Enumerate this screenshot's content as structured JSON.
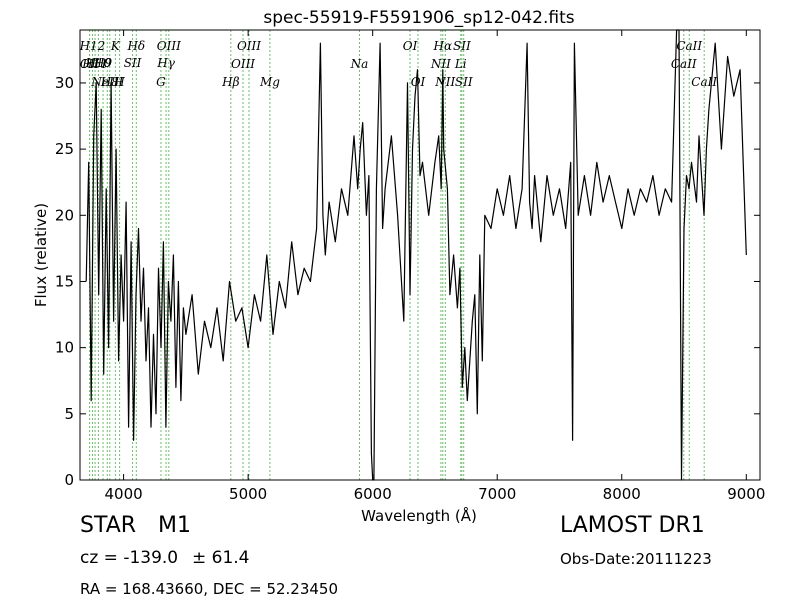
{
  "chart_data": {
    "type": "line",
    "title": "spec-55919-F5591906_sp12-042.fits",
    "xlabel": "Wavelength (Å)",
    "ylabel": "Flux (relative)",
    "xlim": [
      3650,
      9110
    ],
    "ylim": [
      0,
      34
    ],
    "x_ticks": [
      4000,
      5000,
      6000,
      7000,
      8000,
      9000
    ],
    "y_ticks": [
      0,
      5,
      10,
      15,
      20,
      25,
      30
    ],
    "grid": false,
    "line_color": "#000000",
    "marker_color": "#6abf6a",
    "series": [
      {
        "x": [
          3700,
          3720,
          3740,
          3760,
          3780,
          3800,
          3820,
          3840,
          3860,
          3880,
          3900,
          3920,
          3940,
          3960,
          3980,
          4000,
          4020,
          4040,
          4060,
          4080,
          4100,
          4120,
          4140,
          4160,
          4180,
          4200,
          4220,
          4240,
          4260,
          4280,
          4300,
          4320,
          4340,
          4360,
          4380,
          4400,
          4420,
          4440,
          4460,
          4480,
          4500,
          4550,
          4600,
          4650,
          4700,
          4750,
          4800,
          4850,
          4900,
          4950,
          5000,
          5050,
          5100,
          5150,
          5200,
          5250,
          5300,
          5350,
          5400,
          5450,
          5500,
          5550,
          5580,
          5600,
          5620,
          5650,
          5700,
          5750,
          5800,
          5850,
          5880,
          5900,
          5920,
          5950,
          5970,
          5990,
          6000,
          6010,
          6030,
          6060,
          6080,
          6100,
          6150,
          6200,
          6250,
          6280,
          6300,
          6320,
          6340,
          6360,
          6380,
          6400,
          6450,
          6500,
          6530,
          6550,
          6563,
          6570,
          6600,
          6620,
          6650,
          6680,
          6700,
          6720,
          6740,
          6760,
          6780,
          6800,
          6820,
          6840,
          6860,
          6880,
          6900,
          6950,
          7000,
          7050,
          7100,
          7150,
          7200,
          7240,
          7260,
          7280,
          7300,
          7350,
          7400,
          7450,
          7500,
          7550,
          7590,
          7605,
          7620,
          7650,
          7700,
          7750,
          7800,
          7850,
          7900,
          7950,
          8000,
          8050,
          8100,
          8150,
          8200,
          8250,
          8300,
          8350,
          8400,
          8440,
          8460,
          8480,
          8500,
          8520,
          8540,
          8560,
          8600,
          8620,
          8660,
          8680,
          8700,
          8750,
          8800,
          8850,
          8900,
          8950,
          9000
        ],
        "y": [
          15,
          24,
          6,
          26,
          30,
          14,
          28,
          8,
          22,
          10,
          30,
          12,
          25,
          9,
          17,
          12,
          21,
          4,
          18,
          3,
          14,
          19,
          12,
          16,
          9,
          13,
          4,
          11,
          5,
          16,
          10,
          18,
          4,
          15,
          12,
          17,
          7,
          15,
          6,
          13,
          11,
          14,
          8,
          12,
          10,
          13,
          9,
          15,
          12,
          13,
          10,
          14,
          12,
          17,
          11,
          15,
          13,
          18,
          14,
          16,
          15,
          19,
          33,
          20,
          17,
          21,
          18,
          22,
          20,
          26,
          22,
          25,
          27,
          20,
          23,
          2,
          0,
          0,
          22,
          33,
          19,
          22,
          26,
          20,
          12,
          30,
          14,
          25,
          29,
          31,
          23,
          24,
          20,
          24,
          26,
          22,
          31,
          25,
          22,
          14,
          17,
          13,
          16,
          7,
          10,
          6,
          9,
          12,
          14,
          5,
          17,
          9,
          20,
          19,
          22,
          20,
          23,
          19,
          22,
          33,
          21,
          19,
          23,
          18,
          23,
          20,
          22,
          19,
          24,
          3,
          33,
          20,
          23,
          20,
          24,
          21,
          23,
          21,
          19,
          22,
          20,
          22,
          21,
          23,
          20,
          22,
          21,
          34,
          34,
          0,
          19,
          23,
          22,
          24,
          21,
          26,
          20,
          25,
          28,
          33,
          25,
          32,
          29,
          31,
          17
        ]
      }
    ],
    "markers": [
      {
        "x": 3727,
        "label": "OII",
        "row": 3
      },
      {
        "x": 3750,
        "label": "H12",
        "row": 1
      },
      {
        "x": 3771,
        "label": "H11",
        "row": 3
      },
      {
        "x": 3798,
        "label": "H10",
        "row": 2
      },
      {
        "x": 3835,
        "label": "H9",
        "row": 2
      },
      {
        "x": 3869,
        "label": "NeIII",
        "row": 4
      },
      {
        "x": 3889,
        "label": "H8",
        "row": 4
      },
      {
        "x": 3934,
        "label": "K",
        "row": 1
      },
      {
        "x": 3968,
        "label": "H",
        "row": 4
      },
      {
        "x": 4072,
        "label": "SII",
        "row": 2
      },
      {
        "x": 4102,
        "label": "Hδ",
        "row": 1
      },
      {
        "x": 4300,
        "label": "G",
        "row": 4
      },
      {
        "x": 4341,
        "label": "Hγ",
        "row": 2
      },
      {
        "x": 4363,
        "label": "OIII",
        "row": 1
      },
      {
        "x": 4861,
        "label": "Hβ",
        "row": 4
      },
      {
        "x": 4959,
        "label": "OIII",
        "row": 3
      },
      {
        "x": 5007,
        "label": "OIII",
        "row": 1
      },
      {
        "x": 5175,
        "label": "Mg",
        "row": 4
      },
      {
        "x": 5894,
        "label": "Na",
        "row": 3
      },
      {
        "x": 6300,
        "label": "OI",
        "row": 1
      },
      {
        "x": 6364,
        "label": "OI",
        "row": 4
      },
      {
        "x": 6548,
        "label": "NII",
        "row": 3
      },
      {
        "x": 6563,
        "label": "Hα",
        "row": 1
      },
      {
        "x": 6583,
        "label": "NII",
        "row": 4
      },
      {
        "x": 6707,
        "label": "Li",
        "row": 3
      },
      {
        "x": 6716,
        "label": "SII",
        "row": 1
      },
      {
        "x": 6731,
        "label": "SII",
        "row": 4
      },
      {
        "x": 8498,
        "label": "CaII",
        "row": 3
      },
      {
        "x": 8542,
        "label": "CaII",
        "row": 1
      },
      {
        "x": 8662,
        "label": "CaII",
        "row": 4
      }
    ]
  },
  "info": {
    "class_label": "STAR",
    "subclass": "M1",
    "survey": "LAMOST DR1",
    "cz_label": "cz = -139.0",
    "cz_err": "± 61.4",
    "obs_date": "Obs-Date:20111223",
    "coords": "RA = 168.43660, DEC = 52.23450"
  }
}
